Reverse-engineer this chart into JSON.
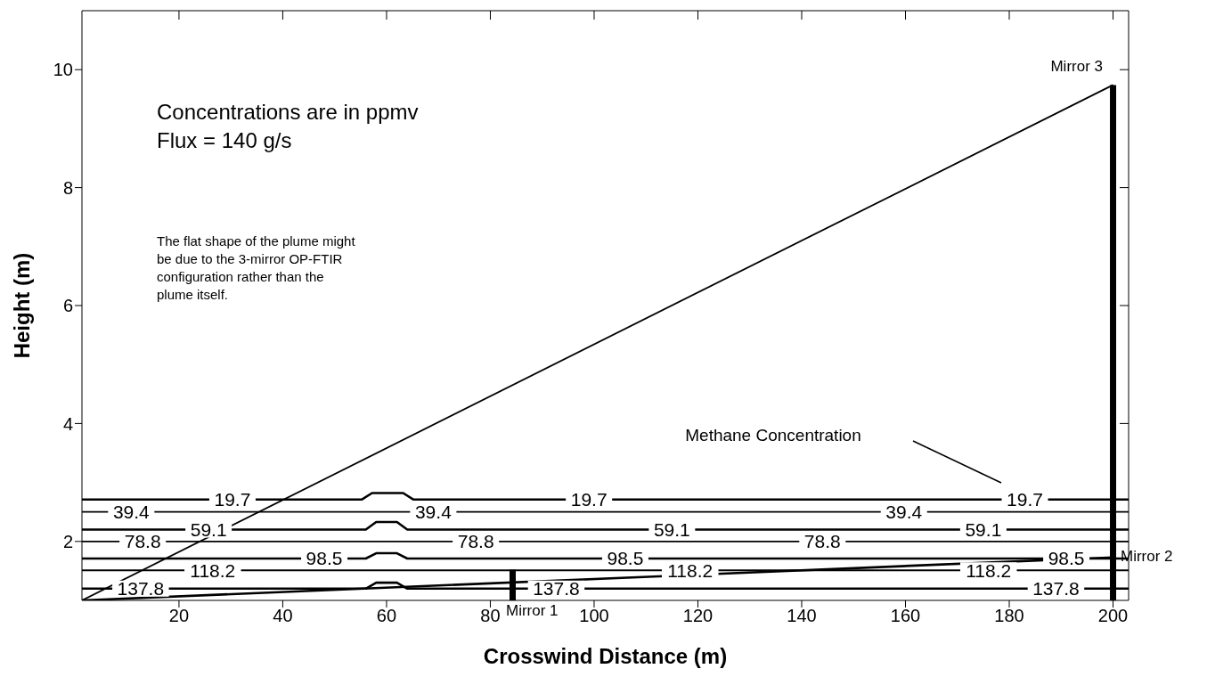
{
  "chart_data": {
    "type": "line",
    "xlabel": "Crosswind Distance (m)",
    "ylabel": "Height (m)",
    "xlim": [
      1.3,
      203
    ],
    "ylim": [
      1,
      11
    ],
    "xticks": [
      20,
      40,
      60,
      80,
      100,
      120,
      140,
      160,
      180,
      200
    ],
    "yticks": [
      2,
      4,
      6,
      8,
      10
    ],
    "marker": "none",
    "line_style": "solid",
    "series": [
      {
        "color": "#000000",
        "x": [
          1.3,
          55.2,
          57.2,
          63.2,
          65.2,
          203
        ],
        "values": [
          2.71,
          2.71,
          2.82,
          2.82,
          2.71,
          2.71
        ]
      },
      {
        "color": "#000000",
        "x": [
          1.3,
          203
        ],
        "values": [
          2.5,
          2.5
        ]
      },
      {
        "color": "#000000",
        "x": [
          1.3,
          56,
          58,
          62,
          64,
          203
        ],
        "values": [
          2.2,
          2.2,
          2.33,
          2.33,
          2.2,
          2.2
        ]
      },
      {
        "color": "#000000",
        "x": [
          1.3,
          203
        ],
        "values": [
          2.0,
          2.0
        ]
      },
      {
        "color": "#000000",
        "x": [
          1.3,
          56,
          58,
          62,
          64,
          203
        ],
        "values": [
          1.71,
          1.71,
          1.8,
          1.8,
          1.71,
          1.71
        ]
      },
      {
        "color": "#000000",
        "x": [
          1.3,
          203
        ],
        "values": [
          1.51,
          1.51
        ]
      },
      {
        "color": "#000000",
        "x": [
          1.3,
          56,
          58,
          62,
          64,
          203
        ],
        "values": [
          1.2,
          1.2,
          1.3,
          1.3,
          1.2,
          1.2
        ]
      },
      {
        "color": "#000000",
        "x": [
          1.3,
          200
        ],
        "values": [
          1,
          9.74
        ]
      },
      {
        "color": "#000000",
        "x": [
          1.3,
          200
        ],
        "values": [
          1,
          1.73
        ]
      },
      {
        "color": "#000000",
        "x": [
          84.3,
          84.3
        ],
        "values": [
          1,
          1.52
        ]
      },
      {
        "color": "#000000",
        "x": [
          200,
          200
        ],
        "values": [
          1,
          9.74
        ]
      }
    ],
    "annotations": [
      "Concentrations are in ppmv",
      "Flux = 140 g/s",
      "The flat shape of the plume might be due to the 3-mirror OP-FTIR configuration rather than the plume itself.",
      "Mirror 1",
      "Mirror 2",
      "Mirror 3",
      "Methane Concentration",
      {
        "text": "19.7",
        "x": 30.3,
        "y": 2.71
      },
      {
        "text": "19.7",
        "x": 99,
        "y": 2.71
      },
      {
        "text": "19.7",
        "x": 183,
        "y": 2.71
      },
      {
        "text": "39.4",
        "x": 10.8,
        "y": 2.5
      },
      {
        "text": "39.4",
        "x": 69,
        "y": 2.5
      },
      {
        "text": "39.4",
        "x": 159.7,
        "y": 2.5
      },
      {
        "text": "59.1",
        "x": 25.7,
        "y": 2.2
      },
      {
        "text": "59.1",
        "x": 115,
        "y": 2.2
      },
      {
        "text": "59.1",
        "x": 175,
        "y": 2.2
      },
      {
        "text": "78.8",
        "x": 13,
        "y": 2.0
      },
      {
        "text": "78.8",
        "x": 77.2,
        "y": 2.0
      },
      {
        "text": "78.8",
        "x": 144,
        "y": 2.0
      },
      {
        "text": "98.5",
        "x": 48,
        "y": 1.71
      },
      {
        "text": "98.5",
        "x": 106,
        "y": 1.71
      },
      {
        "text": "98.5",
        "x": 191,
        "y": 1.71
      },
      {
        "text": "118.2",
        "x": 26.5,
        "y": 1.51
      },
      {
        "text": "118.2",
        "x": 118.5,
        "y": 1.51
      },
      {
        "text": "118.2",
        "x": 176,
        "y": 1.51
      },
      {
        "text": "137.8",
        "x": 12.6,
        "y": 1.2
      },
      {
        "text": "137.8",
        "x": 92.7,
        "y": 1.2
      },
      {
        "text": "137.8",
        "x": 189,
        "y": 1.2
      }
    ]
  }
}
